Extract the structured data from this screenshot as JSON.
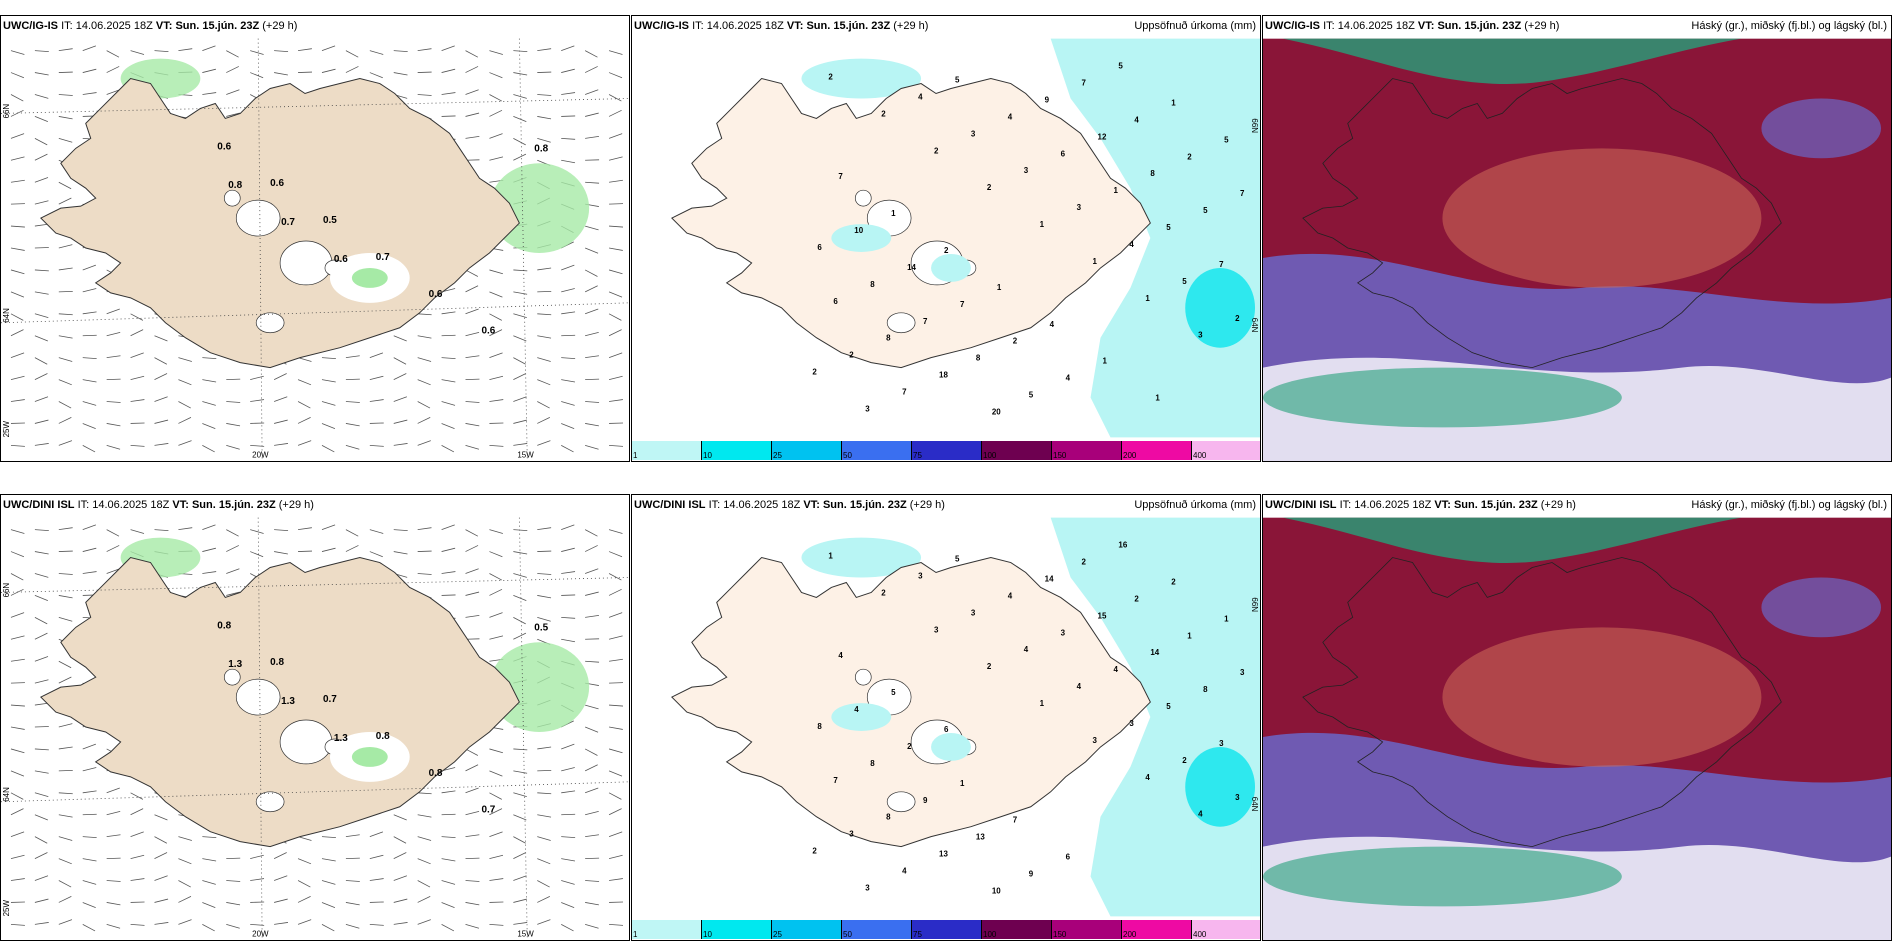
{
  "panels": [
    {
      "id": "p1",
      "model": "UWC/IG-IS",
      "it_label": "IT:",
      "it_value": "14.06.2025 18Z",
      "vt_label": "VT:",
      "vt_value": "Sun. 15.jún. 23Z",
      "lead": "(+29 h)",
      "right_title": "",
      "bg": "#ffffff",
      "labels": [
        "0.6",
        "0.6",
        "0.5",
        "0.7",
        "0.6",
        "0.6",
        "0.8",
        "0.8",
        "0.7",
        "0.6"
      ],
      "axis": {
        "x1": "20W",
        "x2": "15W",
        "y1": "66N",
        "y2": "64N",
        "y3": "25W"
      }
    },
    {
      "id": "p2",
      "model": "UWC/IG-IS",
      "it_label": "IT:",
      "it_value": "14.06.2025 18Z",
      "vt_label": "VT:",
      "vt_value": "Sun. 15.jún. 23Z",
      "lead": "(+29 h)",
      "right_title": "Uppsöfnuð úrkoma (mm)",
      "bg": "#ffffff",
      "labels": [
        "2",
        "2",
        "2",
        "2",
        "1",
        "1",
        "1",
        "3",
        "2",
        "3",
        "4",
        "3",
        "3",
        "3",
        "4",
        "5",
        "2",
        "2",
        "7",
        "5",
        "4",
        "6",
        "1",
        "5",
        "7",
        "6",
        "8",
        "18",
        "20",
        "9",
        "12",
        "8",
        "5",
        "6",
        "8",
        "7",
        "8",
        "5",
        "7",
        "4",
        "2",
        "7",
        "10",
        "14",
        "7",
        "2",
        "4",
        "5",
        "1",
        "5",
        "7",
        "1",
        "2",
        "1",
        "4",
        "1",
        "1"
      ],
      "axis": {
        "y1": "66N",
        "y2": "64N"
      }
    },
    {
      "id": "p3",
      "model": "UWC/IG-IS",
      "it_label": "IT:",
      "it_value": "14.06.2025 18Z",
      "vt_label": "VT:",
      "vt_value": "Sun. 15.jún. 23Z",
      "lead": "(+29 h)",
      "right_title": "Háský (gr.), miðský (fj.bl.) og lágský (bl.)",
      "bg": "#8a1538"
    },
    {
      "id": "p4",
      "model": "UWC/DINI ISL",
      "it_label": "IT:",
      "it_value": "14.06.2025 18Z",
      "vt_label": "VT:",
      "vt_value": "Sun. 15.jún. 23Z",
      "lead": "(+29 h)",
      "right_title": "",
      "bg": "#ffffff",
      "labels": [
        "0.8",
        "0.8",
        "0.7",
        "0.8",
        "0.8",
        "0.7",
        "0.5",
        "1.3",
        "1.3",
        "1.3"
      ],
      "axis": {
        "x1": "20W",
        "x2": "15W",
        "y1": "66N",
        "y2": "64N",
        "y3": "25W"
      }
    },
    {
      "id": "p5",
      "model": "UWC/DINI ISL",
      "it_label": "IT:",
      "it_value": "14.06.2025 18Z",
      "vt_label": "VT:",
      "vt_value": "Sun. 15.jún. 23Z",
      "lead": "(+29 h)",
      "right_title": "Uppsöfnuð úrkoma (mm)",
      "bg": "#ffffff",
      "labels": [
        "1",
        "2",
        "3",
        "2",
        "1",
        "3",
        "4",
        "4",
        "2",
        "3",
        "3",
        "3",
        "4",
        "4",
        "3",
        "2",
        "3",
        "3",
        "4",
        "5",
        "4",
        "3",
        "4",
        "5",
        "3",
        "7",
        "8",
        "13",
        "10",
        "14",
        "15",
        "14",
        "8",
        "8",
        "8",
        "9",
        "13",
        "9",
        "2",
        "2",
        "1",
        "3",
        "4",
        "2",
        "1",
        "7",
        "6",
        "16",
        "2",
        "1",
        "4",
        "5",
        "6"
      ],
      "axis": {
        "y1": "66N",
        "y2": "64N"
      }
    },
    {
      "id": "p6",
      "model": "UWC/DINI ISL",
      "it_label": "IT:",
      "it_value": "14.06.2025 18Z",
      "vt_label": "VT:",
      "vt_value": "Sun. 15.jún. 23Z",
      "lead": "(+29 h)",
      "right_title": "Háský (gr.), miðský (fj.bl.) og lágský (bl.)",
      "bg": "#8a1538"
    }
  ],
  "legend": {
    "colors": [
      "#bff6f5",
      "#00e8ef",
      "#00c2f0",
      "#3a6ff0",
      "#2a2cc7",
      "#6e0050",
      "#a8007a",
      "#ee0aa3",
      "#f7b6ee"
    ],
    "labels": [
      "1",
      "10",
      "25",
      "50",
      "75",
      "100",
      "150",
      "200",
      "400"
    ]
  },
  "colors": {
    "land": "#eddcc6",
    "land_precip": "#fdf1e6",
    "cyan": "#b8f5f4",
    "green": "#a6eaa6",
    "cloud_high": "#25a07a",
    "cloud_mid": "#6a66c8",
    "cloud_low": "#cf6e5a"
  }
}
